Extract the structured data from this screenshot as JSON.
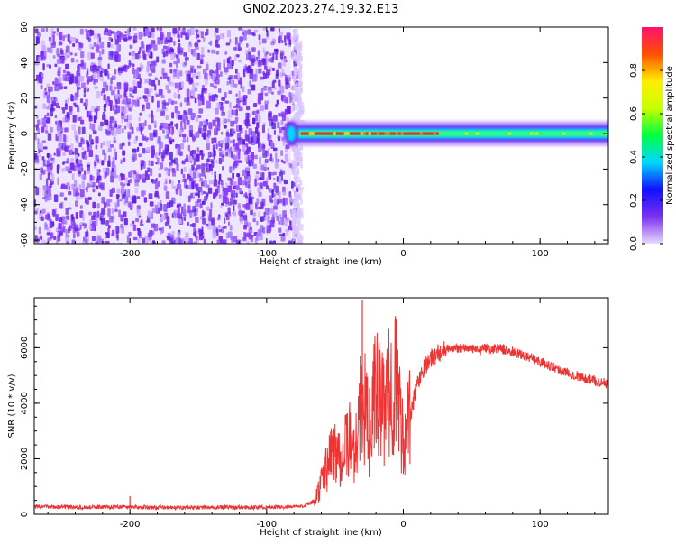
{
  "title": "GN02.2023.274.19.32.E13",
  "chart_data": [
    {
      "type": "heatmap",
      "xlabel": "Height of straight line (km)",
      "ylabel": "Frequency (Hz)",
      "xlim": [
        -270,
        150
      ],
      "ylim": [
        -62,
        60
      ],
      "x_ticks": [
        -200,
        -100,
        0,
        100
      ],
      "y_ticks": [
        -60,
        -40,
        -20,
        0,
        20,
        40,
        60
      ],
      "noise_region_x": [
        -270,
        -82
      ],
      "signal_band": {
        "x_start": -85,
        "x_end": 150,
        "frequency_center": 0,
        "half_width": 5
      },
      "grid": false,
      "colorbar": {
        "label": "Normalized spectral amplitude",
        "range": [
          0,
          1
        ],
        "ticks": [
          0.0,
          0.2,
          0.4,
          0.6,
          0.8
        ],
        "colormap": [
          "#e8d9ff",
          "#7b2ff0",
          "#1010ff",
          "#00d8ff",
          "#00ff40",
          "#c8ff00",
          "#ffee00",
          "#ff5000",
          "#ff1070"
        ]
      }
    },
    {
      "type": "line",
      "xlabel": "Height of straight line (km)",
      "ylabel": "SNR (10 * v/v)",
      "xlim": [
        -270,
        150
      ],
      "ylim": [
        0,
        7800
      ],
      "x_ticks": [
        -200,
        -100,
        0,
        100
      ],
      "y_ticks": [
        0,
        2000,
        4000,
        6000
      ],
      "color": "#ee3333",
      "grid": false,
      "x": [
        -270,
        -250,
        -230,
        -210,
        -190,
        -170,
        -150,
        -130,
        -110,
        -90,
        -75,
        -65,
        -60,
        -55,
        -50,
        -45,
        -40,
        -35,
        -30,
        -25,
        -20,
        -15,
        -10,
        -5,
        0,
        5,
        10,
        15,
        20,
        25,
        30,
        35,
        40,
        45,
        50,
        55,
        60,
        65,
        70,
        75,
        80,
        85,
        90,
        95,
        100,
        110,
        120,
        130,
        140,
        150
      ],
      "values": [
        280,
        260,
        250,
        270,
        250,
        240,
        240,
        250,
        250,
        260,
        280,
        450,
        1100,
        1900,
        2400,
        2000,
        2700,
        2400,
        4300,
        2900,
        4500,
        3700,
        4400,
        4800,
        2600,
        3500,
        4700,
        5300,
        5600,
        5800,
        5900,
        5950,
        6000,
        6000,
        5950,
        5900,
        5950,
        5950,
        6000,
        5900,
        5850,
        5750,
        5700,
        5600,
        5500,
        5300,
        5100,
        4950,
        4800,
        4700
      ],
      "spikes": [
        {
          "x": -200,
          "value": 650
        },
        {
          "x": -30,
          "value": 7700
        },
        {
          "x": -5,
          "value": 7000
        }
      ]
    }
  ]
}
